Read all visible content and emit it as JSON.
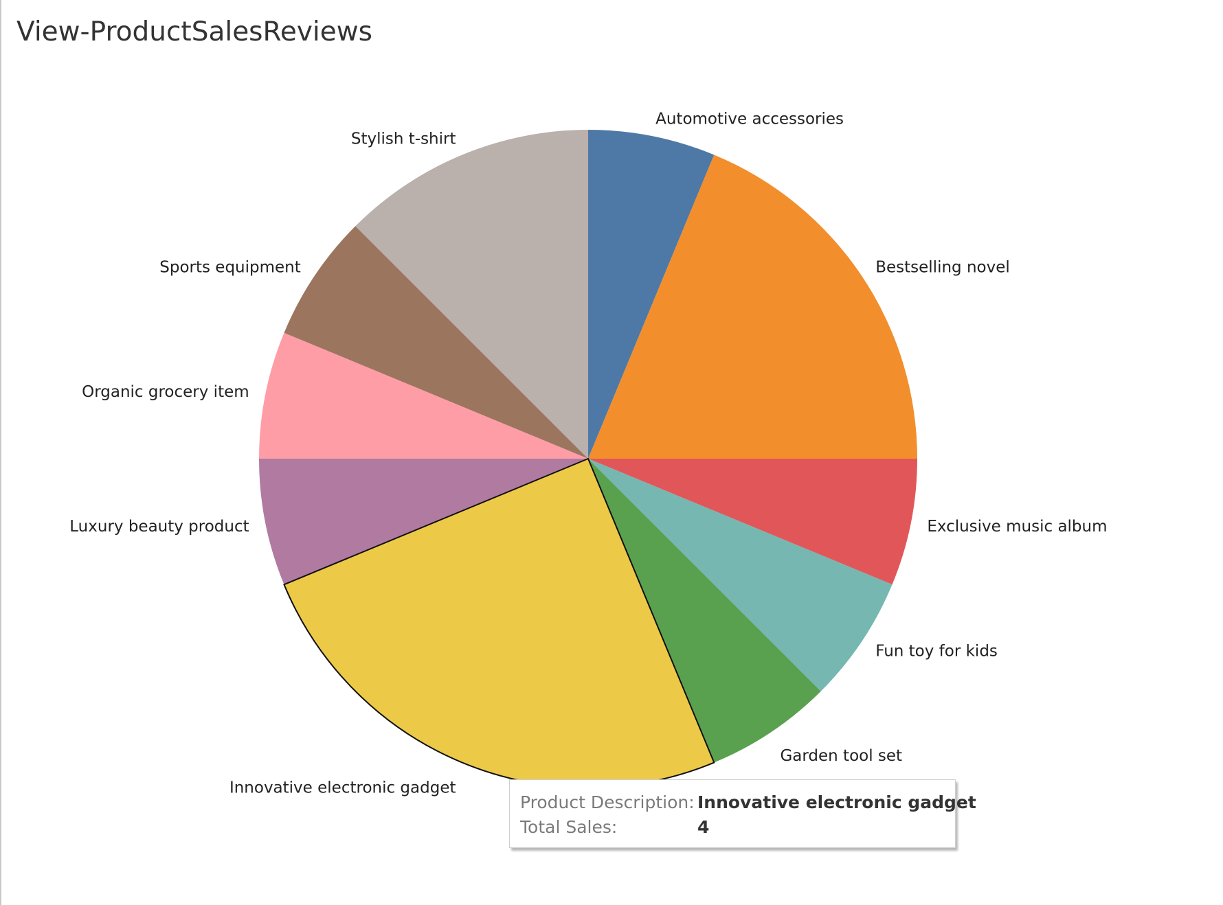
{
  "title": "View-ProductSalesReviews",
  "chart_data": {
    "type": "pie",
    "title": "View-ProductSalesReviews",
    "measure": "Total Sales",
    "dimension": "Product Description",
    "slices": [
      {
        "label": "Automotive accessories",
        "value": 1,
        "color": "#4e79a7"
      },
      {
        "label": "Bestselling novel",
        "value": 3,
        "color": "#f28e2b"
      },
      {
        "label": "Exclusive music album",
        "value": 1,
        "color": "#e15759"
      },
      {
        "label": "Fun toy for kids",
        "value": 1,
        "color": "#76b7b2"
      },
      {
        "label": "Garden tool set",
        "value": 1,
        "color": "#59a14f"
      },
      {
        "label": "Innovative electronic gadget",
        "value": 4,
        "color": "#edc948",
        "highlighted": true
      },
      {
        "label": "Luxury beauty product",
        "value": 1,
        "color": "#b07aa1"
      },
      {
        "label": "Organic grocery item",
        "value": 1,
        "color": "#ff9da7"
      },
      {
        "label": "Sports equipment",
        "value": 1,
        "color": "#9c755f"
      },
      {
        "label": "Stylish t-shirt",
        "value": 2,
        "color": "#bab0ac"
      }
    ]
  },
  "tooltip": {
    "rows": [
      {
        "key": "Product Description:",
        "value": "Innovative electronic gadget"
      },
      {
        "key": "Total Sales:",
        "value": "4"
      }
    ]
  }
}
